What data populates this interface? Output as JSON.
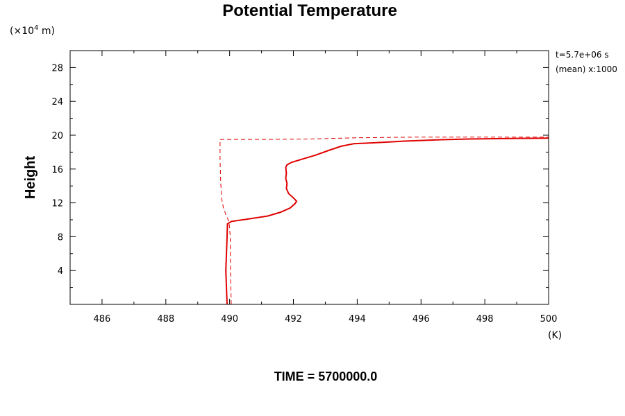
{
  "chart_data": {
    "type": "line",
    "title": "Potential Temperature",
    "ylabel": "Height",
    "y_unit_prefix": "(×10",
    "y_unit_exp": "4",
    "y_unit_suffix": " m)",
    "x_unit": "(K)",
    "annotation_line1": "t=5.7e+06 s",
    "annotation_line2": "(mean) x:1000",
    "footer": "TIME = 5700000.0",
    "xlim": [
      485,
      500
    ],
    "ylim": [
      0,
      30
    ],
    "x_ticks": [
      486,
      488,
      490,
      492,
      494,
      496,
      498,
      500
    ],
    "y_ticks": [
      4,
      8,
      12,
      16,
      20,
      24,
      28
    ],
    "line_color": "#e00000",
    "series": [
      {
        "style": "solid",
        "points": [
          [
            489.92,
            0
          ],
          [
            489.9,
            2
          ],
          [
            489.88,
            4
          ],
          [
            489.9,
            6
          ],
          [
            489.92,
            8
          ],
          [
            489.93,
            9.5
          ],
          [
            490.05,
            9.8
          ],
          [
            490.6,
            10.1
          ],
          [
            491.2,
            10.45
          ],
          [
            491.6,
            10.9
          ],
          [
            491.9,
            11.4
          ],
          [
            492.05,
            11.9
          ],
          [
            492.1,
            12.2
          ],
          [
            492.0,
            12.6
          ],
          [
            491.85,
            13.1
          ],
          [
            491.78,
            13.7
          ],
          [
            491.8,
            14.3
          ],
          [
            491.76,
            14.9
          ],
          [
            491.78,
            15.5
          ],
          [
            491.76,
            16.2
          ],
          [
            491.8,
            16.5
          ],
          [
            491.95,
            16.8
          ],
          [
            492.3,
            17.2
          ],
          [
            492.7,
            17.65
          ],
          [
            493.1,
            18.2
          ],
          [
            493.5,
            18.7
          ],
          [
            493.9,
            19.0
          ],
          [
            494.5,
            19.1
          ],
          [
            495.5,
            19.3
          ],
          [
            496.5,
            19.45
          ],
          [
            497.5,
            19.55
          ],
          [
            499.0,
            19.62
          ],
          [
            500.0,
            19.65
          ]
        ]
      },
      {
        "style": "dashed",
        "points": [
          [
            490.05,
            0
          ],
          [
            490.03,
            4
          ],
          [
            490.02,
            8
          ],
          [
            489.98,
            9.8
          ],
          [
            489.88,
            10.6
          ],
          [
            489.8,
            11.5
          ],
          [
            489.75,
            12.5
          ],
          [
            489.72,
            14.5
          ],
          [
            489.7,
            17
          ],
          [
            489.7,
            19.5
          ],
          [
            491,
            19.5
          ],
          [
            492.5,
            19.55
          ],
          [
            494,
            19.7
          ],
          [
            496,
            19.78
          ],
          [
            498,
            19.78
          ],
          [
            500,
            19.78
          ]
        ]
      }
    ]
  }
}
